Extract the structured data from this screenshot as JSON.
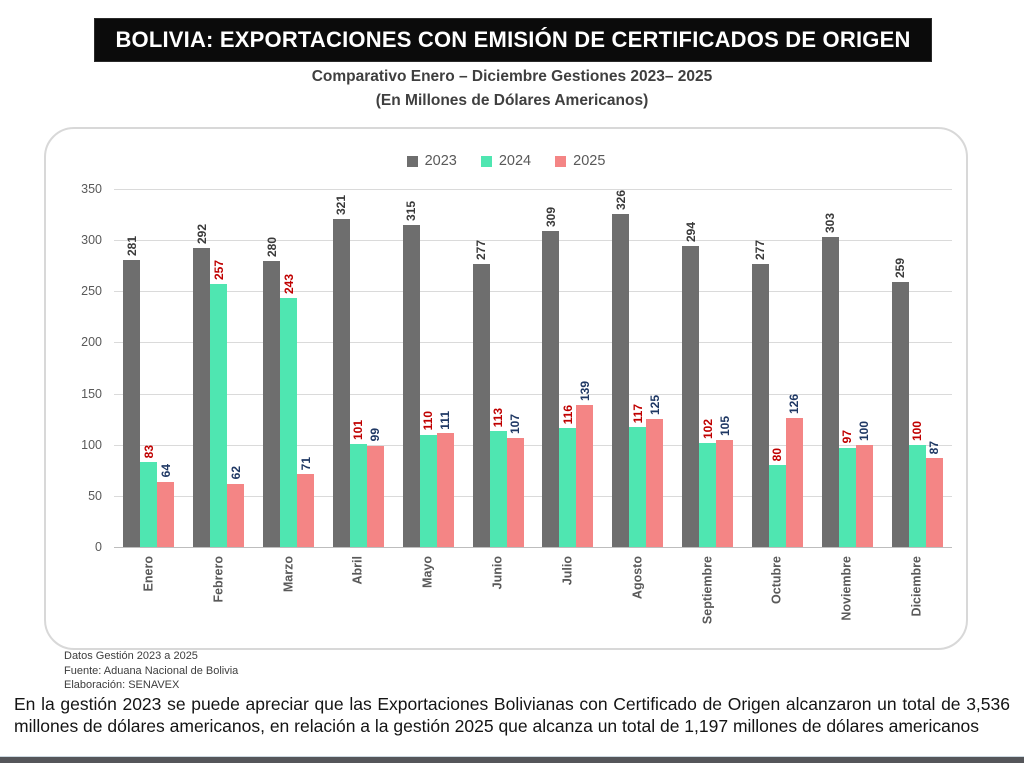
{
  "banner": {
    "title": "BOLIVIA: EXPORTACIONES CON EMISIÓN DE CERTIFICADOS DE ORIGEN"
  },
  "subtitle_line1": "Comparativo Enero – Diciembre Gestiones 2023– 2025",
  "subtitle_line2": "(En Millones de Dólares Americanos)",
  "chart_data": {
    "type": "bar",
    "title": "Comparativo Enero – Diciembre Gestiones 2023– 2025 (En Millones de Dólares Americanos)",
    "categories": [
      "Enero",
      "Febrero",
      "Marzo",
      "Abril",
      "Mayo",
      "Junio",
      "Julio",
      "Agosto",
      "Septiembre",
      "Octubre",
      "Noviembre",
      "Diciembre"
    ],
    "series": [
      {
        "name": "2023",
        "color": "#6e6e6e",
        "label_color": "#3a3a3a",
        "values": [
          281,
          292,
          280,
          321,
          315,
          277,
          309,
          326,
          294,
          277,
          303,
          259
        ]
      },
      {
        "name": "2024",
        "color": "#4fe6b1",
        "label_color": "#c00000",
        "values": [
          83,
          257,
          243,
          101,
          110,
          113,
          116,
          117,
          102,
          80,
          97,
          100
        ]
      },
      {
        "name": "2025",
        "color": "#f48585",
        "label_color": "#1f3864",
        "values": [
          64,
          62,
          71,
          99,
          111,
          107,
          139,
          125,
          105,
          126,
          100,
          87
        ]
      }
    ],
    "xlabel": "",
    "ylabel": "",
    "ylim": [
      0,
      350
    ],
    "yticks": [
      0,
      50,
      100,
      150,
      200,
      250,
      300,
      350
    ],
    "grid": true,
    "legend_position": "top",
    "value_labels_rotated": true
  },
  "footnotes": [
    "Datos Gestión 2023 a  2025",
    "Fuente: Aduana Nacional de Bolivia",
    "Elaboración: SENAVEX"
  ],
  "paragraph": "En la gestión 2023 se puede apreciar que las Exportaciones Bolivianas con Certificado de Origen alcanzaron un total de 3,536 millones de dólares americanos, en relación a la gestión 2025 que alcanza un total de 1,197 millones de dólares americanos"
}
